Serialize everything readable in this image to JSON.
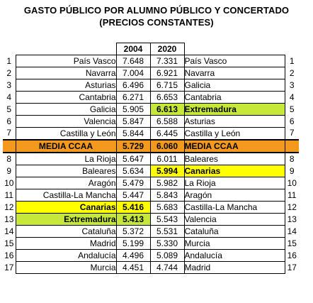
{
  "title_line1": "GASTO PÚBLICO POR ALUMNO PÚBLICO Y CONCERTADO",
  "title_line2": "(PRECIOS CONSTANTES)",
  "columns": {
    "year_a": "2004",
    "year_b": "2020"
  },
  "average": {
    "label_left": "MEDIA CCAA",
    "value_2004": "5.729",
    "value_2020": "6.060",
    "label_right": "MEDIA CCAA"
  },
  "rows": [
    {
      "rank": "1",
      "region_2004": "País Vasco",
      "value_2004": "7.648",
      "value_2020": "7.331",
      "region_2020": "País Vasco"
    },
    {
      "rank": "2",
      "region_2004": "Navarra",
      "value_2004": "7.004",
      "value_2020": "6.921",
      "region_2020": "Navarra"
    },
    {
      "rank": "3",
      "region_2004": "Asturias",
      "value_2004": "6.496",
      "value_2020": "6.715",
      "region_2020": "Galicia"
    },
    {
      "rank": "4",
      "region_2004": "Cantabria",
      "value_2004": "6.271",
      "value_2020": "6.653",
      "region_2020": "Cantabria"
    },
    {
      "rank": "5",
      "region_2004": "Galicia",
      "value_2004": "5.905",
      "value_2020": "6.613",
      "region_2020": "Extremadura"
    },
    {
      "rank": "6",
      "region_2004": "Valencia",
      "value_2004": "5.847",
      "value_2020": "6.588",
      "region_2020": "Asturias"
    },
    {
      "rank": "7",
      "region_2004": "Castilla y León",
      "value_2004": "5.844",
      "value_2020": "6.445",
      "region_2020": "Castilla y León"
    },
    {
      "rank": "8",
      "region_2004": "La Rioja",
      "value_2004": "5.647",
      "value_2020": "6.011",
      "region_2020": "Baleares"
    },
    {
      "rank": "9",
      "region_2004": "Baleares",
      "value_2004": "5.634",
      "value_2020": "5.994",
      "region_2020": "Canarias"
    },
    {
      "rank": "10",
      "region_2004": "Aragón",
      "value_2004": "5.479",
      "value_2020": "5.982",
      "region_2020": "La Rioja"
    },
    {
      "rank": "11",
      "region_2004": "Castilla-La Mancha",
      "value_2004": "5.447",
      "value_2020": "5.843",
      "region_2020": "Aragón"
    },
    {
      "rank": "12",
      "region_2004": "Canarias",
      "value_2004": "5.416",
      "value_2020": "5.683",
      "region_2020": "Castilla-La Mancha"
    },
    {
      "rank": "13",
      "region_2004": "Extremadura",
      "value_2004": "5.413",
      "value_2020": "5.543",
      "region_2020": "Valencia"
    },
    {
      "rank": "14",
      "region_2004": "Cataluña",
      "value_2004": "5.372",
      "value_2020": "5.531",
      "region_2020": "Cataluña"
    },
    {
      "rank": "15",
      "region_2004": "Madrid",
      "value_2004": "5.199",
      "value_2020": "5.330",
      "region_2020": "Murcia"
    },
    {
      "rank": "16",
      "region_2004": "Andalucía",
      "value_2004": "4.496",
      "value_2020": "5.089",
      "region_2020": "Andalucía"
    },
    {
      "rank": "17",
      "region_2004": "Murcia",
      "value_2004": "4.451",
      "value_2020": "4.744",
      "region_2020": "Madrid"
    }
  ],
  "highlight_colors": {
    "extremadura": "#c6e83a",
    "canarias": "#ffff00",
    "average": "#f39a1e"
  }
}
